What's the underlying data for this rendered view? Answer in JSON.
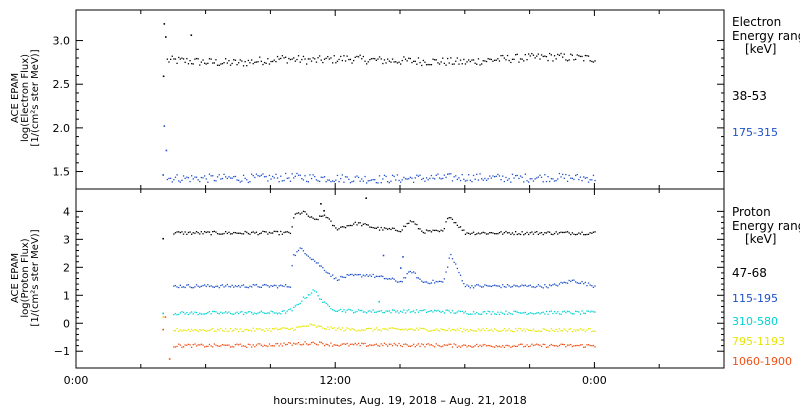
{
  "chart_data": [
    {
      "type": "scatter",
      "panel": "electron",
      "ylabel_lines": [
        "ACE EPAM",
        "log(Electron Flux)",
        "[1/(cm²s ster MeV)]"
      ],
      "legend_title": [
        "Electron",
        "Energy ranges",
        "[keV]"
      ],
      "ylim": [
        1.3,
        3.35
      ],
      "yticks": [
        1.5,
        2.0,
        2.5,
        3.0
      ],
      "ytick_labels": [
        "1.5",
        "2.0",
        "2.5",
        "3.0"
      ],
      "series": [
        {
          "name": "38-53",
          "color": "#000000",
          "x_hours": [
            4.2,
            4.5,
            6.0,
            7.5,
            9.5,
            11.0,
            12.5,
            14.0,
            16.0,
            18.0,
            20.0,
            22.0,
            24.0
          ],
          "y": [
            2.78,
            2.78,
            2.76,
            2.75,
            2.8,
            2.78,
            2.8,
            2.78,
            2.77,
            2.76,
            2.8,
            2.82,
            2.8
          ]
        },
        {
          "name": "175-315",
          "color": "#1e50c8",
          "x_hours": [
            4.2,
            6.0,
            8.0,
            10.0,
            12.0,
            14.0,
            16.0,
            18.0,
            20.0,
            22.0,
            24.0
          ],
          "y": [
            1.43,
            1.43,
            1.43,
            1.44,
            1.43,
            1.42,
            1.43,
            1.44,
            1.43,
            1.44,
            1.43
          ]
        }
      ],
      "spikes": [
        {
          "color": "#000000",
          "x_hours": [
            4.02,
            4.05,
            4.12,
            5.3
          ],
          "y": [
            2.6,
            3.2,
            3.05,
            3.07
          ]
        },
        {
          "color": "#1e50c8",
          "x_hours": [
            4.0,
            4.05,
            4.15
          ],
          "y": [
            1.47,
            2.03,
            1.75
          ]
        }
      ]
    },
    {
      "type": "scatter",
      "panel": "proton",
      "ylabel_lines": [
        "ACE EPAM",
        "log(Proton Flux)",
        "[1/(cm²s ster MeV)]"
      ],
      "legend_title": [
        "Proton",
        "Energy ranges",
        "[keV]"
      ],
      "ylim": [
        -1.6,
        4.8
      ],
      "yticks": [
        -1,
        0,
        1,
        2,
        3,
        4
      ],
      "ytick_labels": [
        "−1",
        "0",
        "1",
        "2",
        "3",
        "4"
      ],
      "series": [
        {
          "name": "47-68",
          "color": "#000000",
          "x_hours": [
            4.5,
            9.9,
            10.1,
            10.5,
            11.0,
            11.5,
            12.0,
            12.5,
            13.0,
            14.0,
            15.0,
            15.5,
            16.0,
            17.0,
            17.2,
            18.0,
            20.0,
            22.0,
            24.0
          ],
          "y": [
            3.25,
            3.25,
            3.9,
            4.0,
            3.7,
            3.9,
            3.4,
            3.5,
            3.6,
            3.4,
            3.35,
            3.7,
            3.3,
            3.3,
            3.9,
            3.25,
            3.25,
            3.25,
            3.25
          ]
        },
        {
          "name": "115-195",
          "color": "#1e50c8",
          "x_hours": [
            4.5,
            9.9,
            10.0,
            10.4,
            10.8,
            11.4,
            12.0,
            12.5,
            13.5,
            14.5,
            15.0,
            15.5,
            16.0,
            17.0,
            17.3,
            18.0,
            20.0,
            22.0,
            23.0,
            24.0
          ],
          "y": [
            1.35,
            1.35,
            2.4,
            2.7,
            2.4,
            2.0,
            1.6,
            1.7,
            1.75,
            1.6,
            1.5,
            1.9,
            1.5,
            1.5,
            2.5,
            1.35,
            1.35,
            1.35,
            1.55,
            1.35
          ]
        },
        {
          "name": "310-580",
          "color": "#00d2d2",
          "x_hours": [
            4.5,
            9.5,
            10.0,
            10.5,
            11.0,
            11.5,
            12.0,
            13.0,
            14.0,
            15.0,
            16.0,
            17.0,
            18.0,
            20.0,
            22.0,
            24.0
          ],
          "y": [
            0.38,
            0.4,
            0.5,
            0.9,
            1.2,
            0.7,
            0.5,
            0.45,
            0.45,
            0.45,
            0.45,
            0.45,
            0.4,
            0.4,
            0.4,
            0.4
          ]
        },
        {
          "name": "795-1193",
          "color": "#e6e600",
          "x_hours": [
            4.5,
            8.0,
            10.0,
            10.8,
            11.5,
            12.5,
            14.0,
            16.0,
            18.0,
            20.0,
            22.0,
            24.0
          ],
          "y": [
            -0.22,
            -0.22,
            -0.18,
            -0.05,
            -0.15,
            -0.2,
            -0.2,
            -0.2,
            -0.22,
            -0.22,
            -0.22,
            -0.22
          ]
        },
        {
          "name": "1060-1900",
          "color": "#f05014",
          "x_hours": [
            4.5,
            8.0,
            10.0,
            11.0,
            12.0,
            14.0,
            16.0,
            18.0,
            20.0,
            22.0,
            24.0
          ],
          "y": [
            -0.78,
            -0.78,
            -0.72,
            -0.68,
            -0.75,
            -0.75,
            -0.76,
            -0.78,
            -0.78,
            -0.78,
            -0.78
          ]
        }
      ],
      "spikes": [
        {
          "color": "#000000",
          "x_hours": [
            4.0,
            11.3,
            11.45,
            13.4
          ],
          "y": [
            3.05,
            4.3,
            4.05,
            4.5
          ]
        },
        {
          "color": "#1e50c8",
          "x_hours": [
            14.2,
            15.0,
            15.1
          ],
          "y": [
            2.45,
            2.0,
            2.4
          ]
        },
        {
          "color": "#00d2d2",
          "x_hours": [
            4.0,
            14.0
          ],
          "y": [
            0.38,
            0.8
          ]
        },
        {
          "color": "#e6e600",
          "x_hours": [
            4.0
          ],
          "y": [
            0.25
          ]
        },
        {
          "color": "#f05014",
          "x_hours": [
            4.0,
            4.1,
            4.3
          ],
          "y": [
            -0.2,
            0.25,
            -1.25
          ]
        }
      ]
    }
  ],
  "x_axis": {
    "label": "hours:minutes, Aug. 19, 2018 – Aug. 21, 2018",
    "range_hours": [
      0,
      30
    ],
    "major_ticks": [
      0,
      12,
      24
    ],
    "major_tick_labels": [
      "0:00",
      "12:00",
      "0:00"
    ]
  },
  "colors": {
    "axis": "#000000",
    "legend_black": "#000000",
    "legend_blue": "#1e50c8",
    "legend_cyan": "#00d2d2",
    "legend_yellow": "#e6e600",
    "legend_orange": "#f05014"
  }
}
